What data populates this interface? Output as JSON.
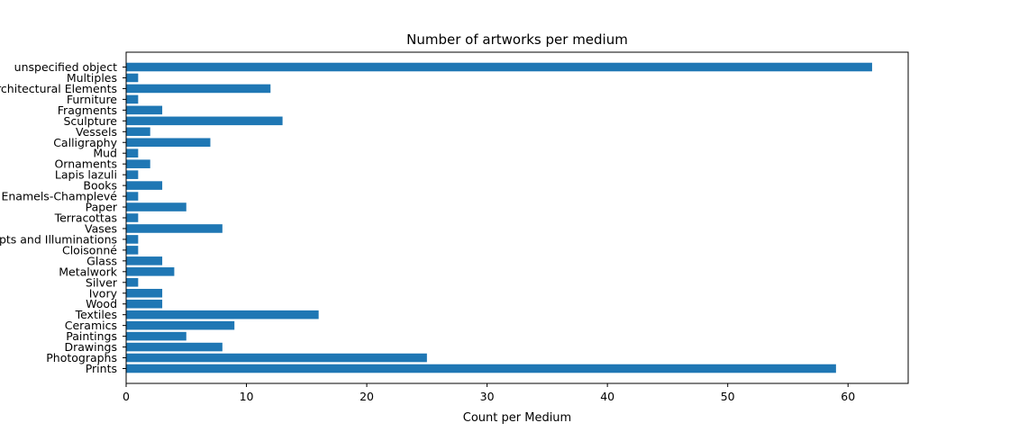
{
  "chart_data": {
    "type": "bar",
    "orientation": "horizontal",
    "title": "Number of artworks per medium",
    "xlabel": "Count per Medium",
    "ylabel": "",
    "xlim": [
      0,
      65
    ],
    "xticks": [
      0,
      10,
      20,
      30,
      40,
      50,
      60
    ],
    "grid": false,
    "legend": "none",
    "bar_color": "#1f77b4",
    "categories": [
      "Prints",
      "Photographs",
      "Drawings",
      "Paintings",
      "Ceramics",
      "Textiles",
      "Wood",
      "Ivory",
      "Silver",
      "Metalwork",
      "Glass",
      "Cloisonné",
      "Manuscripts and Illuminations",
      "Vases",
      "Terracottas",
      "Paper",
      "Enamels-Champlevé",
      "Books",
      "Lapis lazuli",
      "Ornaments",
      "Mud",
      "Calligraphy",
      "Vessels",
      "Sculpture",
      "Fragments",
      "Furniture",
      "Architectural Elements",
      "Multiples",
      "unspecified object"
    ],
    "values": [
      59,
      25,
      8,
      5,
      9,
      16,
      3,
      3,
      1,
      4,
      3,
      1,
      1,
      8,
      1,
      5,
      1,
      3,
      1,
      2,
      1,
      7,
      2,
      13,
      3,
      1,
      12,
      1,
      62
    ]
  }
}
